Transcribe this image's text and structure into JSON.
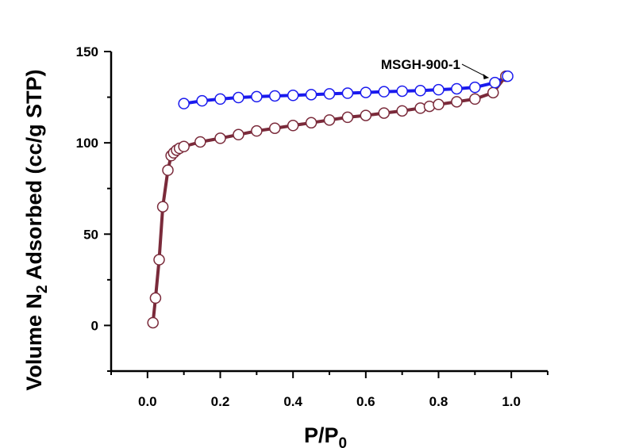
{
  "chart_data": {
    "type": "scatter",
    "title": "",
    "xlabel": "P/P0",
    "ylabel": "Volume N2 Adsorbed (cc/g STP)",
    "xlim": [
      -0.1,
      1.1
    ],
    "ylim": [
      -25,
      150
    ],
    "x_ticks": [
      0.0,
      0.2,
      0.4,
      0.6,
      0.8,
      1.0
    ],
    "x_tick_labels": [
      "0.0",
      "0.2",
      "0.4",
      "0.6",
      "0.8",
      "1.0"
    ],
    "y_ticks": [
      0,
      50,
      100,
      150
    ],
    "y_tick_labels": [
      "0",
      "50",
      "100",
      "150"
    ],
    "grid": false,
    "annotation": {
      "text": "MSGH-900-1",
      "x": 0.955,
      "y": 133
    },
    "series": [
      {
        "role": "adsorption",
        "color": "#7a2a3a",
        "x": [
          0.015,
          0.022,
          0.032,
          0.042,
          0.056,
          0.065,
          0.072,
          0.08,
          0.088,
          0.1,
          0.145,
          0.2,
          0.25,
          0.3,
          0.35,
          0.4,
          0.45,
          0.5,
          0.55,
          0.6,
          0.65,
          0.7,
          0.75,
          0.775,
          0.8,
          0.85,
          0.9,
          0.95,
          0.985
        ],
        "y": [
          1.5,
          15,
          36,
          65,
          85,
          93,
          94.5,
          96,
          97,
          98,
          100.5,
          102.5,
          104.5,
          106.5,
          108,
          109.5,
          111,
          112.5,
          114,
          115,
          116.3,
          117.5,
          119,
          120,
          121,
          122.5,
          124,
          127.5,
          136.5
        ]
      },
      {
        "role": "desorption",
        "color": "#1a1aee",
        "x": [
          0.1,
          0.15,
          0.2,
          0.25,
          0.3,
          0.35,
          0.4,
          0.45,
          0.5,
          0.55,
          0.6,
          0.65,
          0.7,
          0.75,
          0.8,
          0.85,
          0.9,
          0.955,
          0.99
        ],
        "y": [
          121.5,
          123,
          124,
          124.8,
          125.3,
          125.7,
          126,
          126.4,
          126.8,
          127.2,
          127.6,
          128,
          128.3,
          128.6,
          129.1,
          129.6,
          130.4,
          133,
          136.5
        ]
      }
    ]
  }
}
